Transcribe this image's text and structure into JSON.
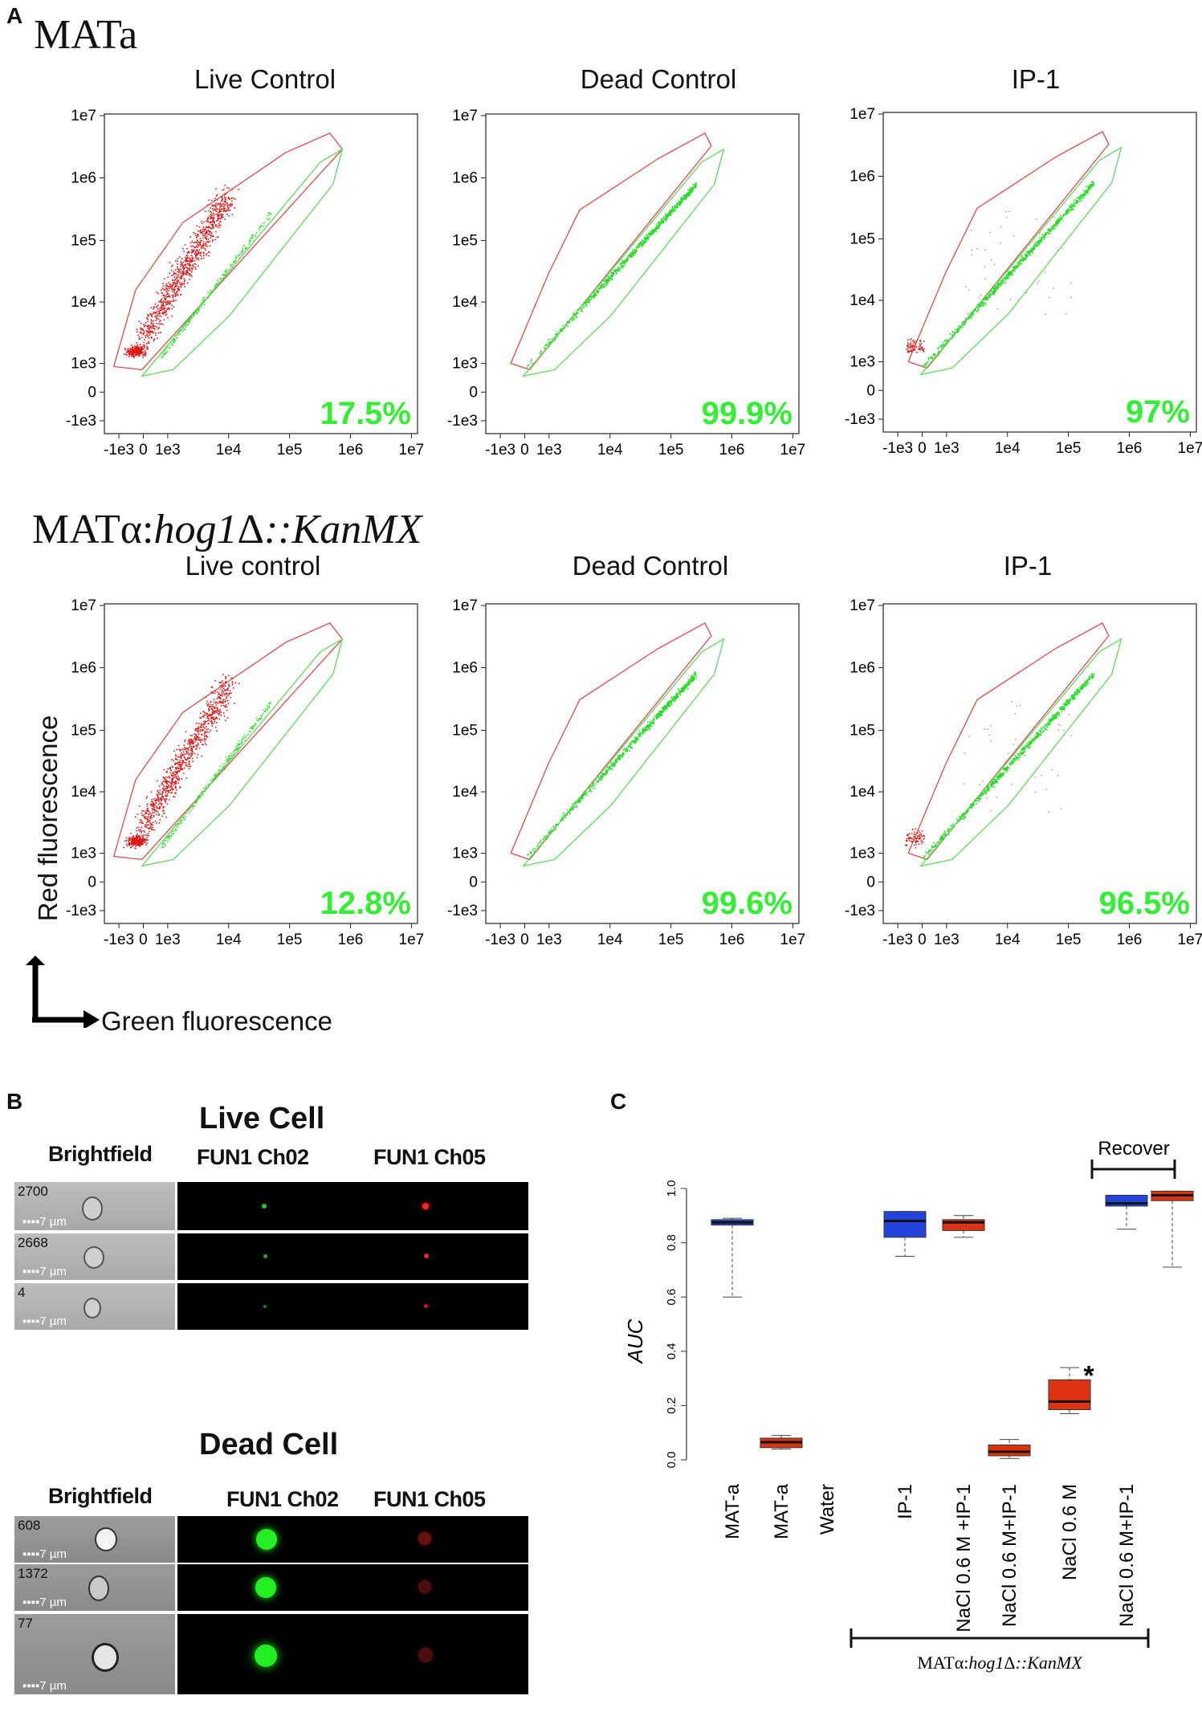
{
  "panel_a": {
    "letter": "A",
    "strain_top": "MATa",
    "strain_bottom_prefix": "MATα:",
    "strain_bottom_italic": "hog1",
    "strain_bottom_delta": "Δ",
    "strain_bottom_suffix": "::KanMX",
    "y_ticks": [
      "1e7",
      "1e6",
      "1e5",
      "1e4",
      "1e3",
      "0",
      "-1e3"
    ],
    "x_ticks": [
      "-1e3",
      "0",
      "1e3",
      "1e4",
      "1e5",
      "1e6",
      "1e7"
    ],
    "y_axis_label": "Red fluorescence",
    "x_axis_label": "Green fluorescence",
    "plots": [
      {
        "title": "Live Control",
        "percent": "17.5%"
      },
      {
        "title": "Dead Control",
        "percent": "99.9%"
      },
      {
        "title": "IP-1",
        "percent": "97%"
      },
      {
        "title": "Live control",
        "percent": "12.8%"
      },
      {
        "title": "Dead Control",
        "percent": "99.6%"
      },
      {
        "title": "IP-1",
        "percent": "96.5%"
      }
    ],
    "colors": {
      "gate_red": "#e05555",
      "gate_green": "#66dd66",
      "dot_red": "#e01818",
      "dot_green": "#22dd22"
    }
  },
  "panel_b": {
    "letter": "B",
    "live_title": "Live Cell",
    "dead_title": "Dead Cell",
    "col_brightfield": "Brightfield",
    "col_ch02": "FUN1 Ch02",
    "col_ch05": "FUN1 Ch05",
    "scale_label": "7 µm",
    "live_ids": [
      "2700",
      "2668",
      "4"
    ],
    "dead_ids": [
      "608",
      "1372",
      "77"
    ]
  },
  "panel_c": {
    "letter": "C",
    "recover_label": "Recover",
    "bottom_bracket_prefix": "MATα:",
    "bottom_bracket_italic": "hog1",
    "bottom_bracket_delta": "Δ",
    "bottom_bracket_suffix": "::KanMX",
    "star": "*"
  },
  "chart_data": {
    "type": "box",
    "title": "",
    "ylabel": "AUC",
    "ylim": [
      0,
      1.0
    ],
    "yticks": [
      "0.0",
      "0.2",
      "0.4",
      "0.6",
      "0.8",
      "1.0"
    ],
    "categories": [
      "MAT-a",
      "MAT-a",
      "Water",
      "IP-1",
      "NaCl 0.6 M +IP-1",
      "NaCl 0.6 M+IP-1",
      "NaCl 0.6  M",
      "NaCl 0.6 M+IP-1"
    ],
    "boxes": [
      {
        "min": 0.6,
        "q1": 0.865,
        "median": 0.875,
        "q3": 0.885,
        "max": 0.89,
        "color": "#2244dd"
      },
      {
        "min": 0.04,
        "q1": 0.045,
        "median": 0.065,
        "q3": 0.08,
        "max": 0.09,
        "color": "#dd3311"
      },
      null,
      {
        "min": 0.75,
        "q1": 0.82,
        "median": 0.88,
        "q3": 0.915,
        "max": 0.915,
        "color": "#2244dd"
      },
      {
        "min": 0.82,
        "q1": 0.845,
        "median": 0.875,
        "q3": 0.885,
        "max": 0.9,
        "color": "#dd3311"
      },
      {
        "min": 0.005,
        "q1": 0.015,
        "median": 0.03,
        "q3": 0.055,
        "max": 0.075,
        "color": "#dd3311"
      },
      {
        "min": 0.17,
        "q1": 0.185,
        "median": 0.215,
        "q3": 0.295,
        "max": 0.34,
        "color": "#dd3311"
      },
      {
        "min": 0.85,
        "q1": 0.935,
        "median": 0.945,
        "q3": 0.975,
        "max": 0.975,
        "color": "#2244dd"
      },
      {
        "min": 0.71,
        "q1": 0.955,
        "median": 0.975,
        "q3": 0.99,
        "max": 0.99,
        "color": "#dd3311"
      }
    ],
    "significance": {
      "category_index": 6,
      "value": 0.33,
      "label": "*"
    }
  }
}
